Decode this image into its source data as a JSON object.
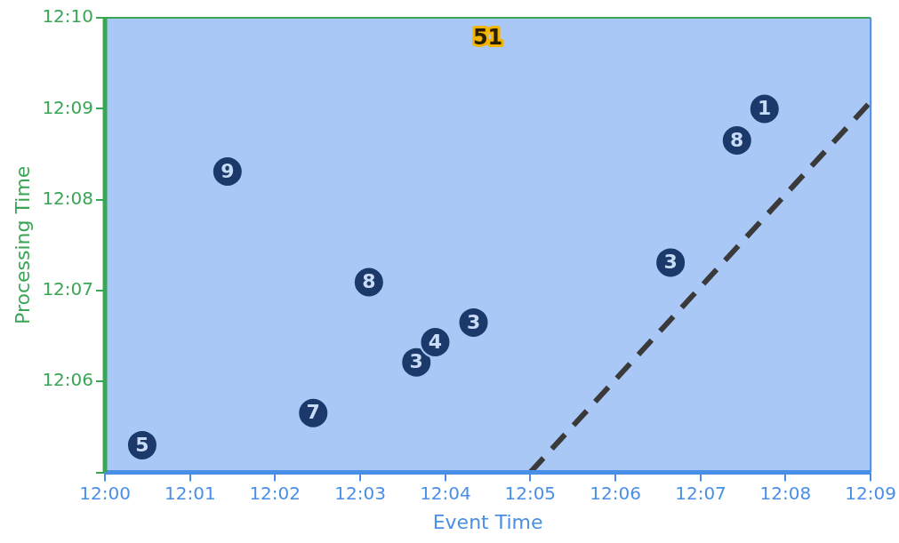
{
  "chart_data": {
    "type": "scatter",
    "xlabel": "Event Time",
    "ylabel": "Processing Time",
    "xlim": [
      12,
      12.15
    ],
    "ylim": [
      12.0833,
      12.1667
    ],
    "xticks": [
      {
        "value": 12,
        "label": "12:00"
      },
      {
        "value": 12.0167,
        "label": "12:01"
      },
      {
        "value": 12.0333,
        "label": "12:02"
      },
      {
        "value": 12.05,
        "label": "12:03"
      },
      {
        "value": 12.0667,
        "label": "12:04"
      },
      {
        "value": 12.0833,
        "label": "12:05"
      },
      {
        "value": 12.1,
        "label": "12:06"
      },
      {
        "value": 12.1167,
        "label": "12:07"
      },
      {
        "value": 12.1333,
        "label": "12:08"
      },
      {
        "value": 12.15,
        "label": "12:09"
      }
    ],
    "yticks": [
      {
        "value": 12.0833,
        "label": null
      },
      {
        "value": 12.1,
        "label": "12:06"
      },
      {
        "value": 12.1167,
        "label": "12:07"
      },
      {
        "value": 12.1333,
        "label": "12:08"
      },
      {
        "value": 12.15,
        "label": "12:09"
      },
      {
        "value": 12.1667,
        "label": "12:10"
      }
    ],
    "series": [
      {
        "color": "#1b3a6b",
        "x": [
          12.0073,
          12.024,
          12.0408,
          12.0517,
          12.061,
          12.0647,
          12.0722,
          12.1108,
          12.1238,
          12.1292
        ],
        "values": [
          12.0883,
          12.1385,
          12.0942,
          12.1182,
          12.1035,
          12.1072,
          12.1108,
          12.1218,
          12.1442,
          12.15
        ]
      },
      {
        "type": "line",
        "color": "#3a3a3a",
        "line_style": "dashed",
        "marker": "none",
        "x": [
          12.0833,
          12.15
        ],
        "values": [
          12.0833,
          12.1513
        ]
      }
    ],
    "annotations": [
      "51",
      {
        "text": "5",
        "x": 12.0073,
        "y": 12.0883
      },
      {
        "text": "9",
        "x": 12.024,
        "y": 12.1385
      },
      {
        "text": "7",
        "x": 12.0408,
        "y": 12.0942
      },
      {
        "text": "8",
        "x": 12.0517,
        "y": 12.1182
      },
      {
        "text": "3",
        "x": 12.061,
        "y": 12.1035
      },
      {
        "text": "4",
        "x": 12.0647,
        "y": 12.1072
      },
      {
        "text": "3",
        "x": 12.0722,
        "y": 12.1108
      },
      {
        "text": "3",
        "x": 12.1108,
        "y": 12.1218
      },
      {
        "text": "8",
        "x": 12.1238,
        "y": 12.1442
      },
      {
        "text": "1",
        "x": 12.1292,
        "y": 12.15
      }
    ],
    "marker": "circle",
    "grid": false,
    "legend": false
  }
}
